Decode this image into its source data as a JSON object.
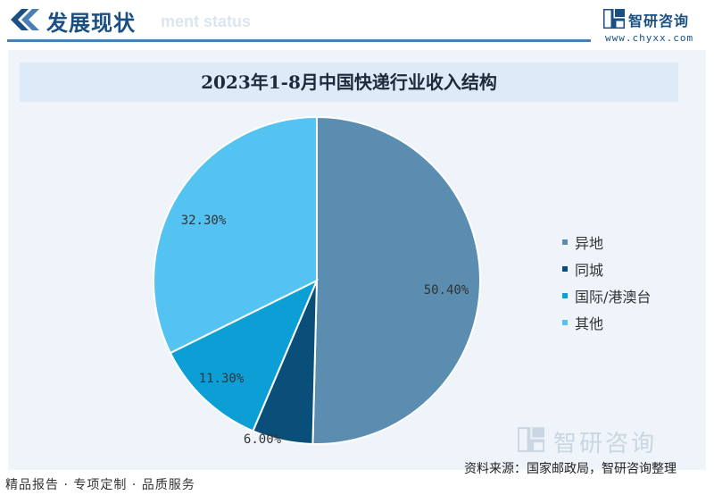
{
  "header": {
    "title": "发展现状",
    "ghost_text": "ment status",
    "accent_color": "#1a4f84"
  },
  "logo": {
    "name": "智研咨询",
    "url": "www.chyxx.com"
  },
  "chart_data": {
    "type": "pie",
    "title": "2023年1-8月中国快递行业收入结构",
    "slices": [
      {
        "name": "异地",
        "value": 50.4,
        "label": "50.40%",
        "color": "#5a8db0"
      },
      {
        "name": "同城",
        "value": 6.0,
        "label": "6.00%",
        "color": "#0a4f7a"
      },
      {
        "name": "国际/港澳台",
        "value": 11.3,
        "label": "11.30%",
        "color": "#0b9fd6"
      },
      {
        "name": "其他",
        "value": 32.3,
        "label": "32.30%",
        "color": "#54c3f2"
      }
    ],
    "legend_position": "right"
  },
  "footer": {
    "slogan": "精品报告 · 专项定制 · 品质服务",
    "source": "资料来源：国家邮政局，智研咨询整理",
    "watermark_name": "智研咨询"
  }
}
